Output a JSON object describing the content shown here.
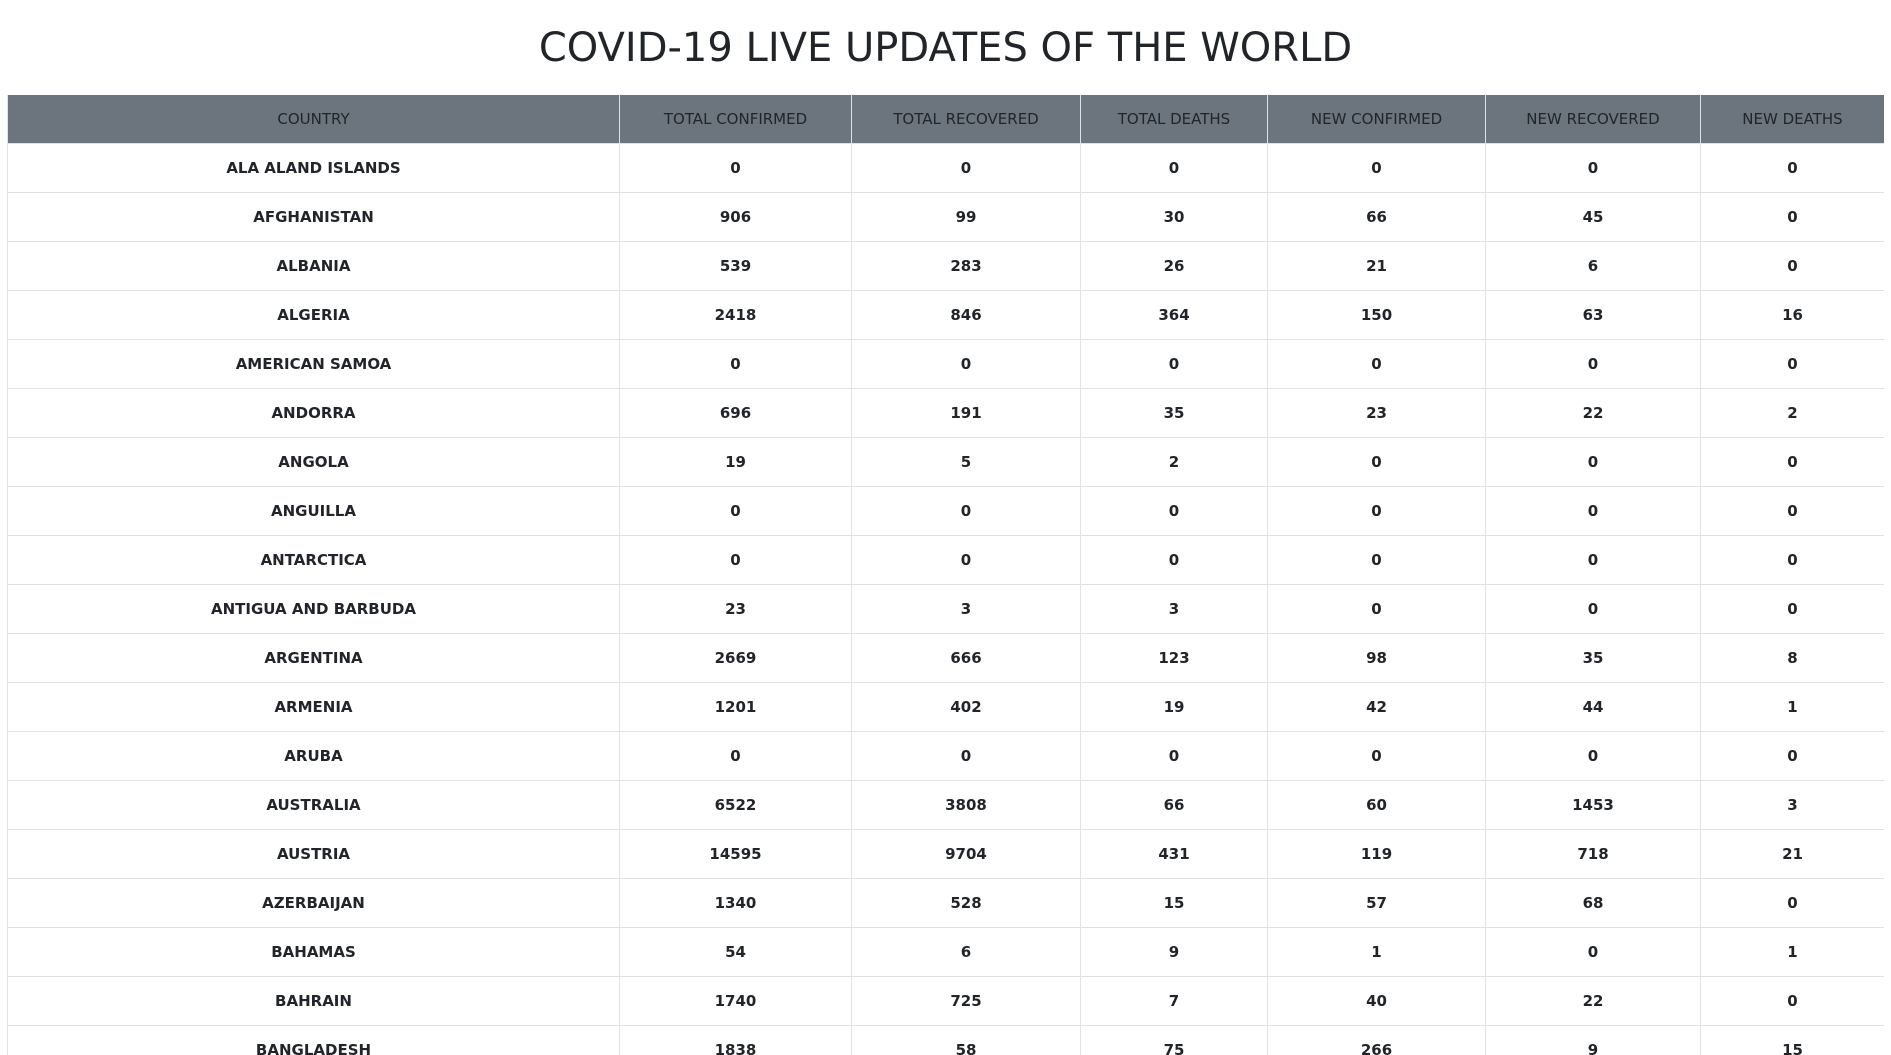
{
  "page": {
    "title": "COVID-19 LIVE UPDATES OF THE WORLD"
  },
  "table": {
    "headers": [
      "COUNTRY",
      "TOTAL CONFIRMED",
      "TOTAL RECOVERED",
      "TOTAL DEATHS",
      "NEW CONFIRMED",
      "NEW RECOVERED",
      "NEW DEATHS"
    ],
    "rows": [
      [
        "ALA ALAND ISLANDS",
        "0",
        "0",
        "0",
        "0",
        "0",
        "0"
      ],
      [
        "AFGHANISTAN",
        "906",
        "99",
        "30",
        "66",
        "45",
        "0"
      ],
      [
        "ALBANIA",
        "539",
        "283",
        "26",
        "21",
        "6",
        "0"
      ],
      [
        "ALGERIA",
        "2418",
        "846",
        "364",
        "150",
        "63",
        "16"
      ],
      [
        "AMERICAN SAMOA",
        "0",
        "0",
        "0",
        "0",
        "0",
        "0"
      ],
      [
        "ANDORRA",
        "696",
        "191",
        "35",
        "23",
        "22",
        "2"
      ],
      [
        "ANGOLA",
        "19",
        "5",
        "2",
        "0",
        "0",
        "0"
      ],
      [
        "ANGUILLA",
        "0",
        "0",
        "0",
        "0",
        "0",
        "0"
      ],
      [
        "ANTARCTICA",
        "0",
        "0",
        "0",
        "0",
        "0",
        "0"
      ],
      [
        "ANTIGUA AND BARBUDA",
        "23",
        "3",
        "3",
        "0",
        "0",
        "0"
      ],
      [
        "ARGENTINA",
        "2669",
        "666",
        "123",
        "98",
        "35",
        "8"
      ],
      [
        "ARMENIA",
        "1201",
        "402",
        "19",
        "42",
        "44",
        "1"
      ],
      [
        "ARUBA",
        "0",
        "0",
        "0",
        "0",
        "0",
        "0"
      ],
      [
        "AUSTRALIA",
        "6522",
        "3808",
        "66",
        "60",
        "1453",
        "3"
      ],
      [
        "AUSTRIA",
        "14595",
        "9704",
        "431",
        "119",
        "718",
        "21"
      ],
      [
        "AZERBAIJAN",
        "1340",
        "528",
        "15",
        "57",
        "68",
        "0"
      ],
      [
        "BAHAMAS",
        "54",
        "6",
        "9",
        "1",
        "0",
        "1"
      ],
      [
        "BAHRAIN",
        "1740",
        "725",
        "7",
        "40",
        "22",
        "0"
      ],
      [
        "BANGLADESH",
        "1838",
        "58",
        "75",
        "266",
        "9",
        "15"
      ]
    ]
  },
  "colors": {
    "header_bg": "#6c757d",
    "border": "#dee2e6",
    "text": "#212529"
  }
}
